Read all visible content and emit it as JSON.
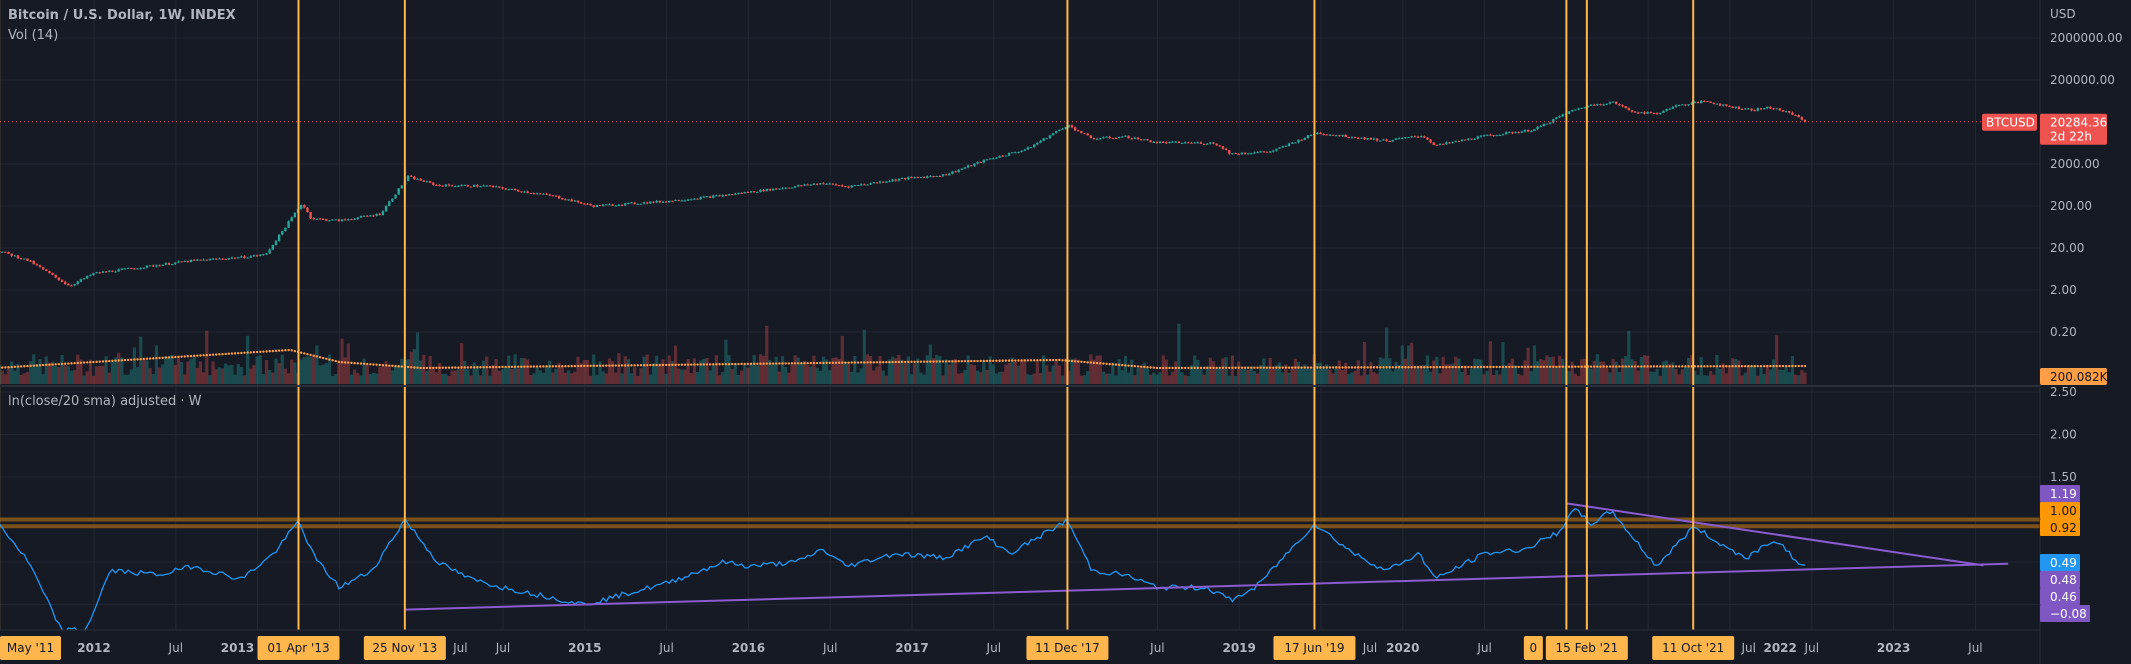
{
  "header": {
    "title": "Bitcoin / U.S. Dollar, 1W, INDEX",
    "volume_legend": "Vol (14)",
    "indicator_legend": "ln(close/20 sma) adjusted · W"
  },
  "colors": {
    "background": "#161a25",
    "grid": "#232733",
    "up": "#26a69a",
    "down": "#ef5350",
    "marker": "#ffb74d",
    "band": "#7a5119",
    "indicator": "#2196f3",
    "trendline": "#8a5cd0",
    "volume_ma": "#ff9e45"
  },
  "chart_data": [
    {
      "type": "candlestick",
      "title": "Bitcoin / U.S. Dollar, 1W, INDEX",
      "ylabel": "USD",
      "yscale": "log",
      "ylim": [
        0.2,
        2000000
      ],
      "grid": true,
      "price_ticks": [
        "2000000.00",
        "200000.00",
        "2000.00",
        "200.00",
        "20.00",
        "2.00",
        "0.20"
      ],
      "price_tick_values": [
        2000000,
        200000,
        2000,
        200,
        20,
        2,
        0.2
      ],
      "last_price": {
        "symbol": "BTCUSD",
        "value": "20284.36",
        "countdown": "2d 22h"
      },
      "close_keypoints": [
        [
          2011.42,
          17
        ],
        [
          2011.6,
          10
        ],
        [
          2011.85,
          2.5
        ],
        [
          2012.0,
          5
        ],
        [
          2012.6,
          10
        ],
        [
          2012.9,
          12
        ],
        [
          2013.05,
          14
        ],
        [
          2013.27,
          230
        ],
        [
          2013.33,
          100
        ],
        [
          2013.5,
          90
        ],
        [
          2013.75,
          130
        ],
        [
          2013.92,
          1000
        ],
        [
          2014.1,
          620
        ],
        [
          2014.4,
          600
        ],
        [
          2014.8,
          350
        ],
        [
          2015.05,
          200
        ],
        [
          2015.5,
          260
        ],
        [
          2015.85,
          360
        ],
        [
          2016.0,
          430
        ],
        [
          2016.45,
          700
        ],
        [
          2016.6,
          580
        ],
        [
          2016.95,
          900
        ],
        [
          2017.2,
          1100
        ],
        [
          2017.45,
          2500
        ],
        [
          2017.7,
          4500
        ],
        [
          2017.95,
          17000
        ],
        [
          2018.1,
          8000
        ],
        [
          2018.3,
          9000
        ],
        [
          2018.5,
          6500
        ],
        [
          2018.85,
          6300
        ],
        [
          2018.95,
          3500
        ],
        [
          2019.2,
          4000
        ],
        [
          2019.47,
          11000
        ],
        [
          2019.9,
          7200
        ],
        [
          2020.12,
          9500
        ],
        [
          2020.2,
          5500
        ],
        [
          2020.5,
          9300
        ],
        [
          2020.8,
          13000
        ],
        [
          2021.0,
          33000
        ],
        [
          2021.12,
          48000
        ],
        [
          2021.28,
          60000
        ],
        [
          2021.4,
          36000
        ],
        [
          2021.55,
          31000
        ],
        [
          2021.65,
          47000
        ],
        [
          2021.85,
          63000
        ],
        [
          2022.0,
          46000
        ],
        [
          2022.15,
          39000
        ],
        [
          2022.25,
          45000
        ],
        [
          2022.4,
          29000
        ],
        [
          2022.47,
          20284.36
        ]
      ]
    },
    {
      "type": "bar",
      "title": "Vol (14)",
      "last_value": "200.082K"
    },
    {
      "type": "line",
      "title": "ln(close/20 sma) adjusted · W",
      "ylim": [
        -0.2,
        2.5
      ],
      "grid": true,
      "ticks": [
        "2.50",
        "2.00",
        "1.50"
      ],
      "tick_values": [
        2.5,
        2.0,
        1.5
      ],
      "bands": [
        1.0,
        0.92
      ],
      "value_labels": [
        {
          "text": "1.19",
          "value": 1.19,
          "color": "#7e57c2"
        },
        {
          "text": "1.00",
          "value": 1.0,
          "color": "#ff9800"
        },
        {
          "text": "0.92",
          "value": 0.92,
          "color": "#ff9800"
        },
        {
          "text": "0.49",
          "value": 0.49,
          "color": "#2196f3"
        },
        {
          "text": "0.48",
          "value": 0.48,
          "color": "#7e57c2"
        },
        {
          "text": "0.46",
          "value": 0.46,
          "color": "#7e57c2"
        },
        {
          "text": "−0.08",
          "value": -0.08,
          "color": "#7e57c2"
        }
      ],
      "trendlines": [
        {
          "from": [
            2013.9,
            -0.06
          ],
          "to": [
            2023.7,
            0.48
          ]
        },
        {
          "from": [
            2021.0,
            1.19
          ],
          "to": [
            2023.55,
            0.46
          ]
        }
      ],
      "keypoints": [
        [
          2011.42,
          0.95
        ],
        [
          2011.6,
          0.5
        ],
        [
          2011.8,
          -0.3
        ],
        [
          2011.95,
          -0.3
        ],
        [
          2012.1,
          0.4
        ],
        [
          2012.4,
          0.35
        ],
        [
          2012.6,
          0.45
        ],
        [
          2012.9,
          0.3
        ],
        [
          2013.1,
          0.6
        ],
        [
          2013.25,
          0.98
        ],
        [
          2013.35,
          0.55
        ],
        [
          2013.5,
          0.2
        ],
        [
          2013.7,
          0.4
        ],
        [
          2013.9,
          1.0
        ],
        [
          2014.1,
          0.5
        ],
        [
          2014.3,
          0.3
        ],
        [
          2014.5,
          0.2
        ],
        [
          2014.75,
          0.1
        ],
        [
          2015.0,
          0.0
        ],
        [
          2015.2,
          0.1
        ],
        [
          2015.5,
          0.25
        ],
        [
          2015.85,
          0.5
        ],
        [
          2016.0,
          0.45
        ],
        [
          2016.3,
          0.5
        ],
        [
          2016.45,
          0.65
        ],
        [
          2016.6,
          0.45
        ],
        [
          2016.9,
          0.6
        ],
        [
          2017.2,
          0.55
        ],
        [
          2017.45,
          0.8
        ],
        [
          2017.6,
          0.6
        ],
        [
          2017.95,
          0.99
        ],
        [
          2018.1,
          0.4
        ],
        [
          2018.3,
          0.35
        ],
        [
          2018.5,
          0.2
        ],
        [
          2018.8,
          0.2
        ],
        [
          2018.95,
          0.05
        ],
        [
          2019.1,
          0.2
        ],
        [
          2019.46,
          0.95
        ],
        [
          2019.7,
          0.6
        ],
        [
          2019.9,
          0.4
        ],
        [
          2020.1,
          0.6
        ],
        [
          2020.2,
          0.3
        ],
        [
          2020.5,
          0.6
        ],
        [
          2020.75,
          0.65
        ],
        [
          2020.95,
          0.85
        ],
        [
          2021.05,
          1.12
        ],
        [
          2021.15,
          0.95
        ],
        [
          2021.28,
          1.1
        ],
        [
          2021.4,
          0.8
        ],
        [
          2021.55,
          0.45
        ],
        [
          2021.78,
          0.92
        ],
        [
          2021.95,
          0.7
        ],
        [
          2022.1,
          0.55
        ],
        [
          2022.25,
          0.75
        ],
        [
          2022.35,
          0.65
        ],
        [
          2022.42,
          0.45
        ],
        [
          2022.47,
          0.49
        ]
      ]
    }
  ],
  "time_axis": {
    "ticks": [
      {
        "t": 2012.0,
        "label": "2012",
        "bold": true
      },
      {
        "t": 2012.5,
        "label": "Jul"
      },
      {
        "t": 2013.0,
        "label": "2013",
        "bold": true
      },
      {
        "t": 2013.5,
        "label": "Jul"
      },
      {
        "t": 2014.5,
        "label": "Jul"
      },
      {
        "t": 2015.0,
        "label": "2015",
        "bold": true
      },
      {
        "t": 2015.5,
        "label": "Jul"
      },
      {
        "t": 2016.0,
        "label": "2016",
        "bold": true
      },
      {
        "t": 2016.5,
        "label": "Jul"
      },
      {
        "t": 2017.0,
        "label": "2017",
        "bold": true
      },
      {
        "t": 2017.5,
        "label": "Jul"
      },
      {
        "t": 2018.5,
        "label": "Jul"
      },
      {
        "t": 2019.0,
        "label": "2019",
        "bold": true
      },
      {
        "t": 2019.5,
        "label": "Jul"
      },
      {
        "t": 2020.0,
        "label": "2020",
        "bold": true
      },
      {
        "t": 2020.5,
        "label": "Jul"
      },
      {
        "t": 2021.5,
        "label": "Jul"
      },
      {
        "t": 2022.0,
        "label": "2022",
        "bold": true
      },
      {
        "t": 2022.5,
        "label": "Jul"
      },
      {
        "t": 2023.0,
        "label": "2023",
        "bold": true
      },
      {
        "t": 2023.5,
        "label": "Jul"
      }
    ],
    "markers": [
      {
        "t": 2011.42,
        "label": "May '11"
      },
      {
        "t": 2013.25,
        "label": "01 Apr '13"
      },
      {
        "t": 2013.9,
        "label": "25 Nov '13"
      },
      {
        "t": 2017.95,
        "label": "11 Dec '17"
      },
      {
        "t": 2019.46,
        "label": "17 Jun '19"
      },
      {
        "t": 2021.0,
        "label": "0"
      },
      {
        "t": 2021.125,
        "label": "15 Feb '21"
      },
      {
        "t": 2021.775,
        "label": "11 Oct '21"
      }
    ]
  }
}
